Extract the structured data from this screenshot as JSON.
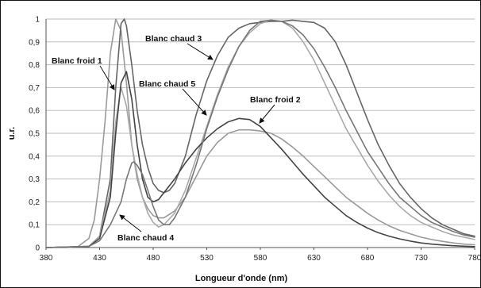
{
  "chart_data": {
    "type": "line",
    "title": "",
    "xlabel": "Longueur d'onde (nm)",
    "ylabel": "u.r.",
    "xlim": [
      380,
      780
    ],
    "ylim": [
      0,
      1
    ],
    "xticks": [
      "380",
      "430",
      "480",
      "530",
      "580",
      "630",
      "680",
      "730",
      "780"
    ],
    "yticks": [
      "0",
      "0,1",
      "0,2",
      "0,3",
      "0,4",
      "0,5",
      "0,6",
      "0,7",
      "0,8",
      "0,9",
      "1"
    ],
    "grid": true,
    "legend": "none",
    "annotations": [
      {
        "text": "Blanc froid 1",
        "series": 0
      },
      {
        "text": "Blanc chaud 3",
        "series": 1
      },
      {
        "text": "Blanc chaud 5",
        "series": 2
      },
      {
        "text": "Blanc froid 2",
        "series": 3
      },
      {
        "text": "Blanc chaud 4",
        "series": 4
      }
    ],
    "series": [
      {
        "color": "#9a9a9a",
        "x": [
          380,
          400,
          410,
          420,
          425,
          430,
          435,
          440,
          445,
          450,
          455,
          460,
          465,
          470,
          475,
          480,
          485,
          490,
          500,
          510,
          520,
          530,
          540,
          550,
          560,
          570,
          580,
          590,
          600,
          610,
          620,
          630,
          640,
          650,
          660,
          670,
          680,
          690,
          700,
          710,
          720,
          730,
          740,
          750,
          760,
          770,
          780
        ],
        "y": [
          0,
          0,
          0.005,
          0.04,
          0.12,
          0.3,
          0.55,
          0.85,
          1.0,
          0.95,
          0.72,
          0.45,
          0.3,
          0.22,
          0.17,
          0.14,
          0.13,
          0.13,
          0.16,
          0.22,
          0.31,
          0.4,
          0.46,
          0.5,
          0.515,
          0.515,
          0.51,
          0.5,
          0.475,
          0.44,
          0.4,
          0.355,
          0.31,
          0.265,
          0.22,
          0.185,
          0.15,
          0.12,
          0.095,
          0.075,
          0.06,
          0.045,
          0.035,
          0.027,
          0.02,
          0.015,
          0.012
        ]
      },
      {
        "color": "#666666",
        "x": [
          380,
          420,
          430,
          440,
          445,
          450,
          453,
          455,
          460,
          465,
          470,
          475,
          480,
          485,
          490,
          495,
          500,
          510,
          520,
          530,
          540,
          550,
          560,
          570,
          580,
          590,
          600,
          610,
          620,
          630,
          640,
          650,
          660,
          670,
          680,
          690,
          700,
          710,
          720,
          730,
          740,
          750,
          760,
          770,
          780
        ],
        "y": [
          0,
          0.005,
          0.05,
          0.3,
          0.7,
          0.98,
          1.0,
          0.97,
          0.8,
          0.6,
          0.45,
          0.35,
          0.28,
          0.25,
          0.24,
          0.25,
          0.28,
          0.4,
          0.58,
          0.73,
          0.84,
          0.92,
          0.96,
          0.98,
          0.985,
          0.99,
          0.99,
          0.995,
          0.99,
          0.985,
          0.96,
          0.9,
          0.8,
          0.68,
          0.56,
          0.45,
          0.36,
          0.28,
          0.22,
          0.17,
          0.13,
          0.1,
          0.08,
          0.06,
          0.05
        ]
      },
      {
        "color": "#aaaaaa",
        "x": [
          380,
          420,
          430,
          440,
          445,
          450,
          455,
          460,
          465,
          470,
          475,
          480,
          485,
          490,
          500,
          510,
          520,
          530,
          540,
          550,
          560,
          570,
          580,
          590,
          600,
          610,
          620,
          630,
          640,
          650,
          660,
          670,
          680,
          690,
          700,
          710,
          720,
          730,
          740,
          750,
          760,
          770,
          780
        ],
        "y": [
          0,
          0.005,
          0.05,
          0.25,
          0.55,
          0.7,
          0.62,
          0.45,
          0.32,
          0.22,
          0.15,
          0.11,
          0.09,
          0.1,
          0.15,
          0.25,
          0.39,
          0.53,
          0.67,
          0.79,
          0.88,
          0.94,
          0.98,
          0.995,
          0.99,
          0.96,
          0.9,
          0.82,
          0.72,
          0.62,
          0.52,
          0.44,
          0.36,
          0.29,
          0.23,
          0.18,
          0.14,
          0.11,
          0.09,
          0.07,
          0.055,
          0.045,
          0.035
        ]
      },
      {
        "color": "#444444",
        "x": [
          380,
          420,
          430,
          440,
          445,
          450,
          455,
          460,
          465,
          470,
          475,
          480,
          485,
          490,
          500,
          510,
          520,
          530,
          540,
          550,
          560,
          570,
          580,
          590,
          600,
          610,
          620,
          630,
          640,
          650,
          660,
          670,
          680,
          690,
          700,
          710,
          720,
          730,
          740,
          750,
          760,
          770,
          780
        ],
        "y": [
          0,
          0.005,
          0.04,
          0.22,
          0.5,
          0.72,
          0.77,
          0.65,
          0.45,
          0.3,
          0.22,
          0.2,
          0.21,
          0.24,
          0.3,
          0.37,
          0.43,
          0.48,
          0.52,
          0.55,
          0.565,
          0.56,
          0.53,
          0.48,
          0.43,
          0.375,
          0.32,
          0.27,
          0.22,
          0.18,
          0.14,
          0.11,
          0.085,
          0.065,
          0.05,
          0.038,
          0.028,
          0.02,
          0.015,
          0.011,
          0.008,
          0.006,
          0.004
        ]
      },
      {
        "color": "#777777",
        "x": [
          380,
          420,
          430,
          440,
          445,
          450,
          455,
          460,
          462,
          465,
          470,
          475,
          480,
          485,
          490,
          495,
          500,
          510,
          520,
          530,
          540,
          550,
          560,
          570,
          580,
          590,
          600,
          610,
          620,
          630,
          640,
          650,
          660,
          670,
          680,
          690,
          700,
          710,
          720,
          730,
          740,
          750,
          760,
          770,
          780
        ],
        "y": [
          0,
          0.005,
          0.03,
          0.1,
          0.15,
          0.2,
          0.3,
          0.37,
          0.375,
          0.36,
          0.32,
          0.25,
          0.18,
          0.12,
          0.1,
          0.1,
          0.13,
          0.22,
          0.36,
          0.52,
          0.66,
          0.78,
          0.88,
          0.95,
          0.99,
          0.995,
          0.99,
          0.97,
          0.93,
          0.87,
          0.79,
          0.7,
          0.6,
          0.51,
          0.42,
          0.35,
          0.28,
          0.22,
          0.18,
          0.14,
          0.11,
          0.09,
          0.07,
          0.055,
          0.045
        ]
      }
    ]
  }
}
